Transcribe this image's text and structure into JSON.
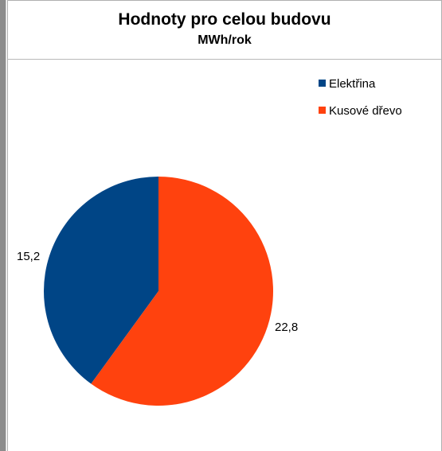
{
  "chart_data": {
    "type": "pie",
    "title": "Hodnoty pro celou budovu",
    "subtitle": "MWh/rok",
    "categories": [
      "Elektřina",
      "Kusové dřevo"
    ],
    "values": [
      15.2,
      22.8
    ],
    "data_labels": [
      "15,2",
      "22,8"
    ],
    "colors": [
      "#004586",
      "#ff420e"
    ],
    "legend_position": "top-right",
    "start_angle_deg": 0,
    "direction": "counterclockwise"
  }
}
